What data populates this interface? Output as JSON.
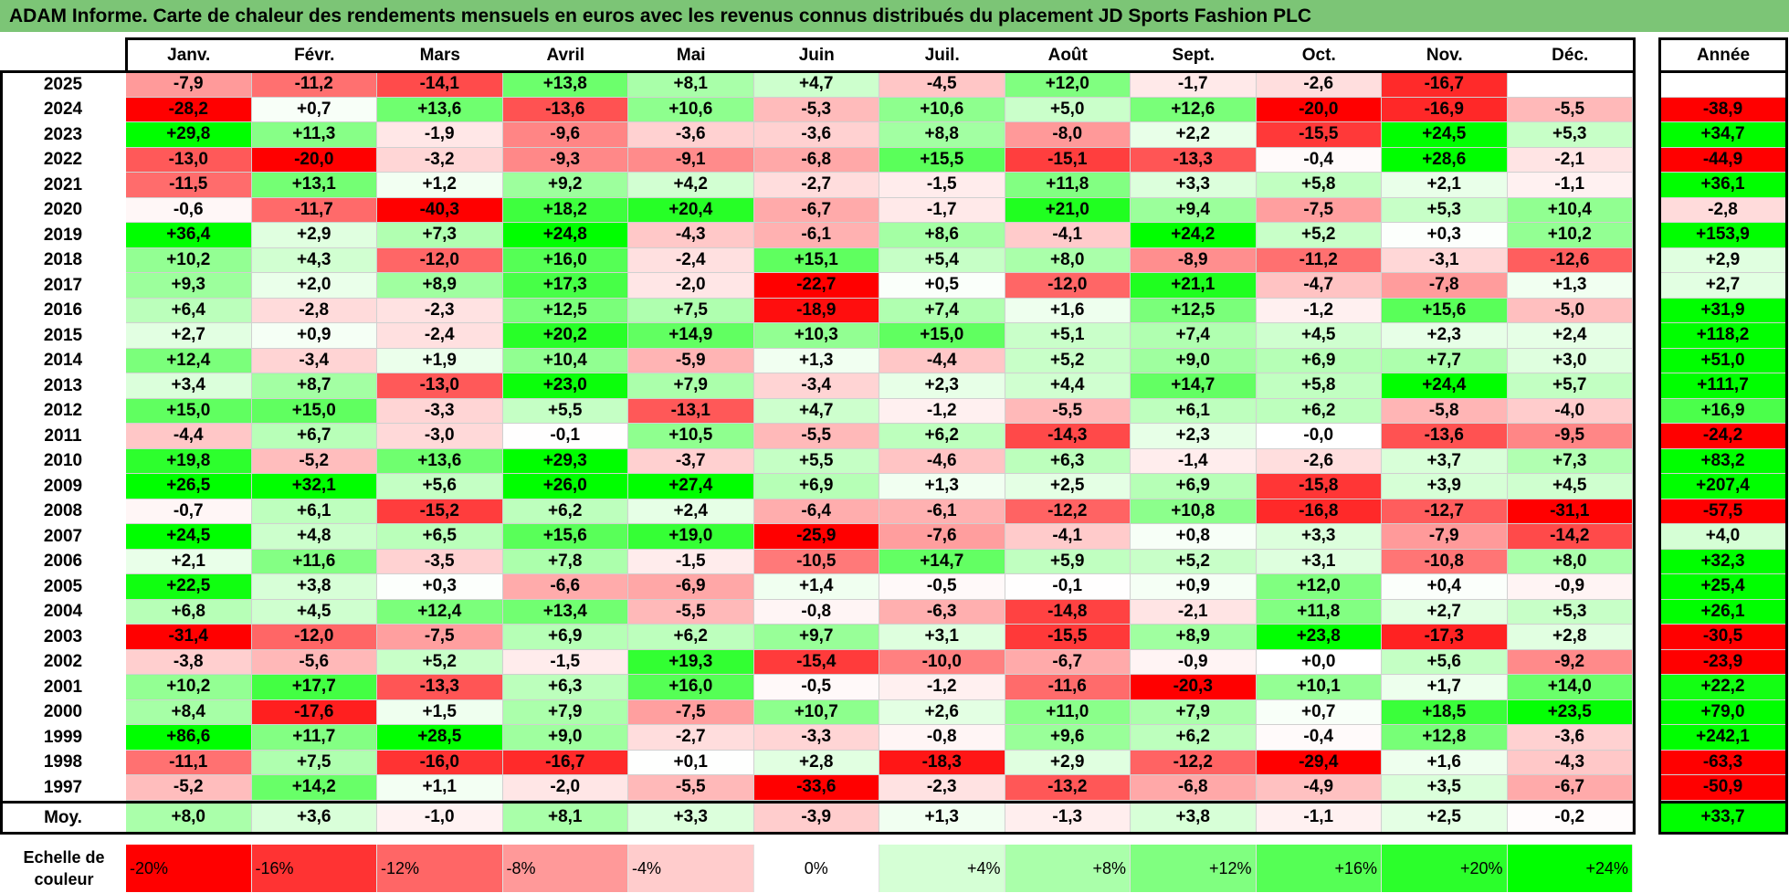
{
  "title": "ADAM Informe. Carte de chaleur des rendements mensuels en euros avec les revenus connus distribués du placement JD Sports Fashion PLC",
  "chart_data": {
    "type": "heatmap",
    "columns": [
      "Janv.",
      "Févr.",
      "Mars",
      "Avril",
      "Mai",
      "Juin",
      "Juil.",
      "Août",
      "Sept.",
      "Oct.",
      "Nov.",
      "Déc."
    ],
    "annual_header": "Année",
    "rows": [
      {
        "year": "2025",
        "values": [
          "-7,9",
          "-11,2",
          "-14,1",
          "+13,8",
          "+8,1",
          "+4,7",
          "-4,5",
          "+12,0",
          "-1,7",
          "-2,6",
          "-16,7",
          ""
        ],
        "annual": ""
      },
      {
        "year": "2024",
        "values": [
          "-28,2",
          "+0,7",
          "+13,6",
          "-13,6",
          "+10,6",
          "-5,3",
          "+10,6",
          "+5,0",
          "+12,6",
          "-20,0",
          "-16,9",
          "-5,5"
        ],
        "annual": "-38,9"
      },
      {
        "year": "2023",
        "values": [
          "+29,8",
          "+11,3",
          "-1,9",
          "-9,6",
          "-3,6",
          "-3,6",
          "+8,8",
          "-8,0",
          "+2,2",
          "-15,5",
          "+24,5",
          "+5,3"
        ],
        "annual": "+34,7"
      },
      {
        "year": "2022",
        "values": [
          "-13,0",
          "-20,0",
          "-3,2",
          "-9,3",
          "-9,1",
          "-6,8",
          "+15,5",
          "-15,1",
          "-13,3",
          "-0,4",
          "+28,6",
          "-2,1"
        ],
        "annual": "-44,9"
      },
      {
        "year": "2021",
        "values": [
          "-11,5",
          "+13,1",
          "+1,2",
          "+9,2",
          "+4,2",
          "-2,7",
          "-1,5",
          "+11,8",
          "+3,3",
          "+5,8",
          "+2,1",
          "-1,1"
        ],
        "annual": "+36,1"
      },
      {
        "year": "2020",
        "values": [
          "-0,6",
          "-11,7",
          "-40,3",
          "+18,2",
          "+20,4",
          "-6,7",
          "-1,7",
          "+21,0",
          "+9,4",
          "-7,5",
          "+5,3",
          "+10,4"
        ],
        "annual": "-2,8"
      },
      {
        "year": "2019",
        "values": [
          "+36,4",
          "+2,9",
          "+7,3",
          "+24,8",
          "-4,3",
          "-6,1",
          "+8,6",
          "-4,1",
          "+24,2",
          "+5,2",
          "+0,3",
          "+10,2"
        ],
        "annual": "+153,9"
      },
      {
        "year": "2018",
        "values": [
          "+10,2",
          "+4,3",
          "-12,0",
          "+16,0",
          "-2,4",
          "+15,1",
          "+5,4",
          "+8,0",
          "-8,9",
          "-11,2",
          "-3,1",
          "-12,6"
        ],
        "annual": "+2,9"
      },
      {
        "year": "2017",
        "values": [
          "+9,3",
          "+2,0",
          "+8,9",
          "+17,3",
          "-2,0",
          "-22,7",
          "+0,5",
          "-12,0",
          "+21,1",
          "-4,7",
          "-7,8",
          "+1,3"
        ],
        "annual": "+2,7"
      },
      {
        "year": "2016",
        "values": [
          "+6,4",
          "-2,8",
          "-2,3",
          "+12,5",
          "+7,5",
          "-18,9",
          "+7,4",
          "+1,6",
          "+12,5",
          "-1,2",
          "+15,6",
          "-5,0"
        ],
        "annual": "+31,9"
      },
      {
        "year": "2015",
        "values": [
          "+2,7",
          "+0,9",
          "-2,4",
          "+20,2",
          "+14,9",
          "+10,3",
          "+15,0",
          "+5,1",
          "+7,4",
          "+4,5",
          "+2,3",
          "+2,4"
        ],
        "annual": "+118,2"
      },
      {
        "year": "2014",
        "values": [
          "+12,4",
          "-3,4",
          "+1,9",
          "+10,4",
          "-5,9",
          "+1,3",
          "-4,4",
          "+5,2",
          "+9,0",
          "+6,9",
          "+7,7",
          "+3,0"
        ],
        "annual": "+51,0"
      },
      {
        "year": "2013",
        "values": [
          "+3,4",
          "+8,7",
          "-13,0",
          "+23,0",
          "+7,9",
          "-3,4",
          "+2,3",
          "+4,4",
          "+14,7",
          "+5,8",
          "+24,4",
          "+5,7"
        ],
        "annual": "+111,7"
      },
      {
        "year": "2012",
        "values": [
          "+15,0",
          "+15,0",
          "-3,3",
          "+5,5",
          "-13,1",
          "+4,7",
          "-1,2",
          "-5,5",
          "+6,1",
          "+6,2",
          "-5,8",
          "-4,0"
        ],
        "annual": "+16,9"
      },
      {
        "year": "2011",
        "values": [
          "-4,4",
          "+6,7",
          "-3,0",
          "-0,1",
          "+10,5",
          "-5,5",
          "+6,2",
          "-14,3",
          "+2,3",
          "-0,0",
          "-13,6",
          "-9,5"
        ],
        "annual": "-24,2"
      },
      {
        "year": "2010",
        "values": [
          "+19,8",
          "-5,2",
          "+13,6",
          "+29,3",
          "-3,7",
          "+5,5",
          "-4,6",
          "+6,3",
          "-1,4",
          "-2,6",
          "+3,7",
          "+7,3"
        ],
        "annual": "+83,2"
      },
      {
        "year": "2009",
        "values": [
          "+26,5",
          "+32,1",
          "+5,6",
          "+26,0",
          "+27,4",
          "+6,9",
          "+1,3",
          "+2,5",
          "+6,9",
          "-15,8",
          "+3,9",
          "+4,5"
        ],
        "annual": "+207,4"
      },
      {
        "year": "2008",
        "values": [
          "-0,7",
          "+6,1",
          "-15,2",
          "+6,2",
          "+2,4",
          "-6,4",
          "-6,1",
          "-12,2",
          "+10,8",
          "-16,8",
          "-12,7",
          "-31,1"
        ],
        "annual": "-57,5"
      },
      {
        "year": "2007",
        "values": [
          "+24,5",
          "+4,8",
          "+6,5",
          "+15,6",
          "+19,0",
          "-25,9",
          "-7,6",
          "-4,1",
          "+0,8",
          "+3,3",
          "-7,9",
          "-14,2"
        ],
        "annual": "+4,0"
      },
      {
        "year": "2006",
        "values": [
          "+2,1",
          "+11,6",
          "-3,5",
          "+7,8",
          "-1,5",
          "-10,5",
          "+14,7",
          "+5,9",
          "+5,2",
          "+3,1",
          "-10,8",
          "+8,0"
        ],
        "annual": "+32,3"
      },
      {
        "year": "2005",
        "values": [
          "+22,5",
          "+3,8",
          "+0,3",
          "-6,6",
          "-6,9",
          "+1,4",
          "-0,5",
          "-0,1",
          "+0,9",
          "+12,0",
          "+0,4",
          "-0,9"
        ],
        "annual": "+25,4"
      },
      {
        "year": "2004",
        "values": [
          "+6,8",
          "+4,5",
          "+12,4",
          "+13,4",
          "-5,5",
          "-0,8",
          "-6,3",
          "-14,8",
          "-2,1",
          "+11,8",
          "+2,7",
          "+5,3"
        ],
        "annual": "+26,1"
      },
      {
        "year": "2003",
        "values": [
          "-31,4",
          "-12,0",
          "-7,5",
          "+6,9",
          "+6,2",
          "+9,7",
          "+3,1",
          "-15,5",
          "+8,9",
          "+23,8",
          "-17,3",
          "+2,8"
        ],
        "annual": "-30,5"
      },
      {
        "year": "2002",
        "values": [
          "-3,8",
          "-5,6",
          "+5,2",
          "-1,5",
          "+19,3",
          "-15,4",
          "-10,0",
          "-6,7",
          "-0,9",
          "+0,0",
          "+5,6",
          "-9,2"
        ],
        "annual": "-23,9"
      },
      {
        "year": "2001",
        "values": [
          "+10,2",
          "+17,7",
          "-13,3",
          "+6,3",
          "+16,0",
          "-0,5",
          "-1,2",
          "-11,6",
          "-20,3",
          "+10,1",
          "+1,7",
          "+14,0"
        ],
        "annual": "+22,2"
      },
      {
        "year": "2000",
        "values": [
          "+8,4",
          "-17,6",
          "+1,5",
          "+7,9",
          "-7,5",
          "+10,7",
          "+2,6",
          "+11,0",
          "+7,9",
          "+0,7",
          "+18,5",
          "+23,5"
        ],
        "annual": "+79,0"
      },
      {
        "year": "1999",
        "values": [
          "+86,6",
          "+11,7",
          "+28,5",
          "+9,0",
          "-2,7",
          "-3,3",
          "-0,8",
          "+9,6",
          "+6,2",
          "-0,4",
          "+12,8",
          "-3,6"
        ],
        "annual": "+242,1"
      },
      {
        "year": "1998",
        "values": [
          "-11,1",
          "+7,5",
          "-16,0",
          "-16,7",
          "+0,1",
          "+2,8",
          "-18,3",
          "+2,9",
          "-12,2",
          "-29,4",
          "+1,6",
          "-4,3"
        ],
        "annual": "-63,3"
      },
      {
        "year": "1997",
        "values": [
          "-5,2",
          "+14,2",
          "+1,1",
          "-2,0",
          "-5,5",
          "-33,6",
          "-2,3",
          "-13,2",
          "-6,8",
          "-4,9",
          "+3,5",
          "-6,7"
        ],
        "annual": "-50,9"
      }
    ],
    "average": {
      "label": "Moy.",
      "values": [
        "+8,0",
        "+3,6",
        "-1,0",
        "+8,1",
        "+3,3",
        "-3,9",
        "+1,3",
        "-1,3",
        "+3,8",
        "-1,1",
        "+2,5",
        "-0,2"
      ],
      "annual": "+33,7"
    },
    "color_scale": {
      "label": "Echelle de couleur",
      "stops": [
        "-20%",
        "-16%",
        "-12%",
        "-8%",
        "-4%",
        "0%",
        "+4%",
        "+8%",
        "+12%",
        "+16%",
        "+20%",
        "+24%"
      ],
      "negative_color": "#FF0000",
      "neutral_color": "#FFFFFF",
      "positive_color": "#00FF00"
    }
  }
}
